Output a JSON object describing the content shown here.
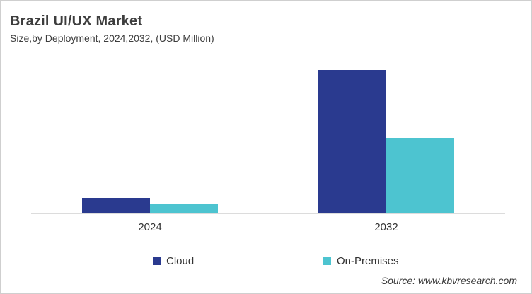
{
  "chart": {
    "source_credit": "Source: www.kbvresearch.com",
    "colors": {
      "cloud": "#2a3a8f",
      "on_premises": "#4dc4d0",
      "axis_line": "#dcdcdc",
      "text": "#3d3d3d",
      "frame_border": "#cfcfcf",
      "background": "#ffffff"
    }
  },
  "chart_data": {
    "type": "bar",
    "title": "Brazil UI/UX Market",
    "subtitle": "Size,by Deployment, 2024,2032, (USD Million)",
    "categories": [
      "2024",
      "2032"
    ],
    "series": [
      {
        "name": "Cloud",
        "color": "#2a3a8f",
        "values": [
          21,
          202
        ]
      },
      {
        "name": "On-Premises",
        "color": "#4dc4d0",
        "values": [
          12,
          106
        ]
      }
    ],
    "xlabel": "",
    "ylabel": "",
    "ylim": [
      0,
      210
    ],
    "grid": false,
    "value_axis_visible": false,
    "legend_position": "bottom",
    "note": "No numeric value axis or data labels are shown in the chart; series values are estimated relative magnitudes read from bar heights (arbitrary units)."
  }
}
